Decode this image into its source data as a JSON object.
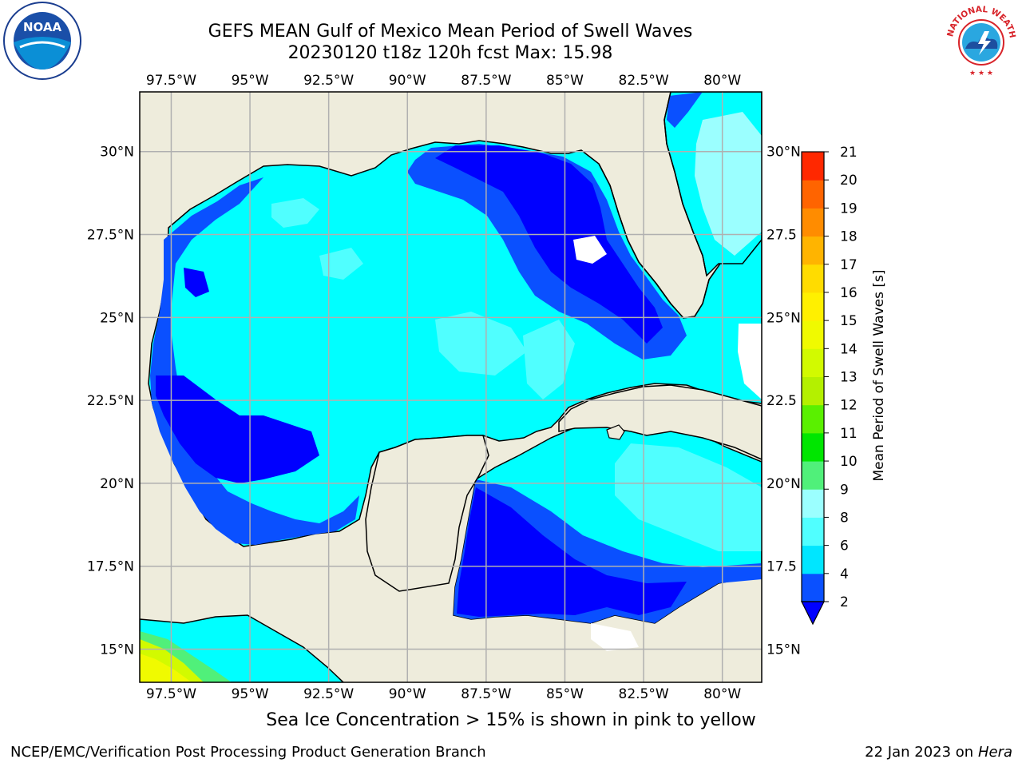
{
  "title": {
    "line1": "GEFS MEAN Gulf of Mexico Mean Period of Swell Waves",
    "line2": "20230120 t18z 120h fcst   Max: 15.98"
  },
  "logos": {
    "left": {
      "icon": "noaa-logo-icon",
      "text": "NOAA"
    },
    "right": {
      "icon": "nws-logo-icon",
      "text": "NATIONAL WEATHER SERVICE"
    }
  },
  "map": {
    "projection": "plate-carree",
    "lon_range": [
      -98.5,
      -78.75
    ],
    "lat_range": [
      14.0,
      31.8
    ],
    "lon_ticks": [
      "97.5°W",
      "95°W",
      "92.5°W",
      "90°W",
      "87.5°W",
      "85°W",
      "82.5°W",
      "80°W"
    ],
    "lat_ticks_left": [
      "30°N",
      "27.5°N",
      "25°N",
      "22.5°N",
      "20°N",
      "17.5°N",
      "15°N"
    ],
    "lat_ticks_right": [
      "30°N",
      "27.5",
      "25°N",
      "22.5",
      "20°N",
      "17.5",
      "15°N"
    ],
    "grid": true,
    "land_color": "#eeecdc",
    "nodata_color": "#ffffff",
    "coastline_color": "#000000"
  },
  "colorbar": {
    "label": "Mean Period of Swell Waves [s]",
    "ticks": [
      "2",
      "4",
      "6",
      "8",
      "9",
      "10",
      "11",
      "12",
      "13",
      "14",
      "15",
      "16",
      "17",
      "18",
      "19",
      "20",
      "21"
    ],
    "colors": [
      "#0a50ff",
      "#00e6ff",
      "#50ffff",
      "#9bffff",
      "#50f07a",
      "#00e600",
      "#5af000",
      "#b4f000",
      "#d2fa00",
      "#f0fa00",
      "#fff000",
      "#ffdc00",
      "#ffb400",
      "#ff8c00",
      "#ff6400",
      "#ff2800"
    ],
    "extend": "min",
    "extend_color": "#0000ff"
  },
  "chart_data": {
    "type": "heatmap",
    "title": "GEFS MEAN Gulf of Mexico Mean Period of Swell Waves",
    "subtitle": "20230120 t18z 120h fcst   Max: 15.98",
    "variable": "Mean Period of Swell Waves [s]",
    "max_value": 15.98,
    "levels": [
      2,
      4,
      6,
      8,
      9,
      10,
      11,
      12,
      13,
      14,
      15,
      16,
      17,
      18,
      19,
      20,
      21
    ]
  },
  "footer": {
    "note": "Sea Ice Concentration > 15% is shown in pink to yellow",
    "left": "NCEP/EMC/Verification Post Processing Product Generation Branch",
    "right_date": "22 Jan 2023 on",
    "right_host": "Hera"
  }
}
